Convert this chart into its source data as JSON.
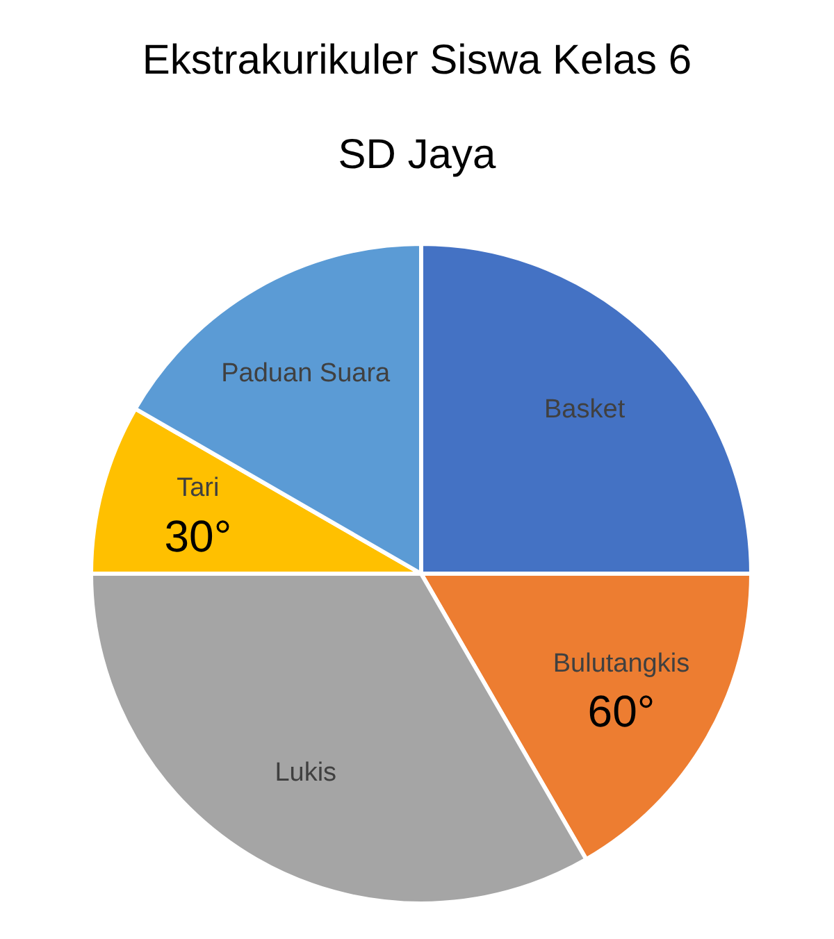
{
  "chart_data": {
    "type": "pie",
    "title": "Ekstrakurikuler Siswa Kelas 6",
    "subtitle": "SD Jaya",
    "categories": [
      "Basket",
      "Bulutangkis",
      "Lukis",
      "Tari",
      "Paduan Suara"
    ],
    "values": [
      90,
      60,
      120,
      30,
      60
    ],
    "value_labels": [
      null,
      "60°",
      null,
      "30°",
      null
    ],
    "colors": [
      "#4472c4",
      "#ed7d31",
      "#a5a5a5",
      "#ffc000",
      "#5b9bd5"
    ],
    "legend": false
  }
}
